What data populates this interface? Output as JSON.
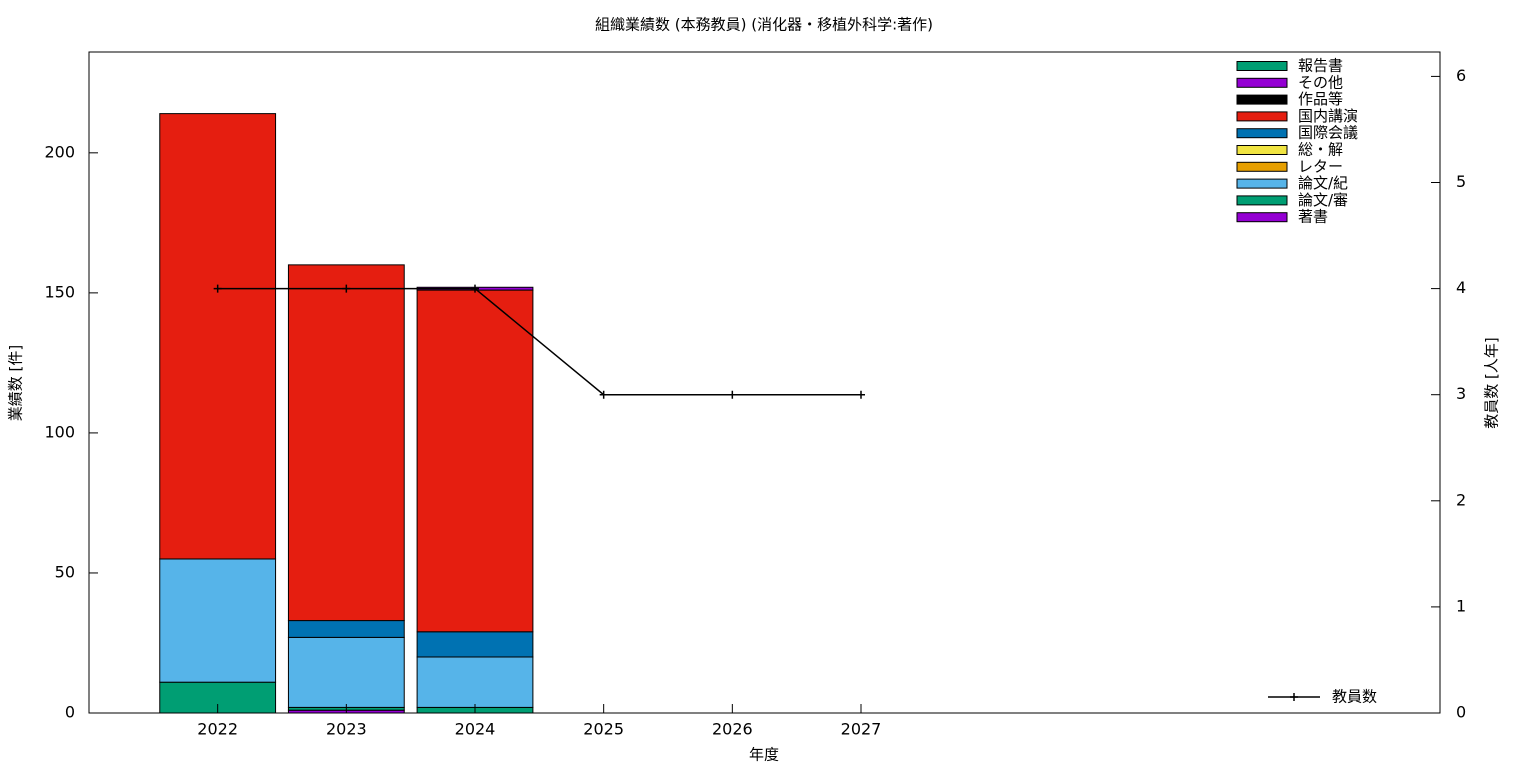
{
  "chart_data": {
    "type": "bar",
    "title": "組織業績数 (本務教員) (消化器・移植外科学:著作)",
    "xlabel": "年度",
    "ylabel": "業績数 [件]",
    "y2label": "教員数 [人年]",
    "x": [
      2022,
      2023,
      2024,
      2025,
      2026,
      2027
    ],
    "xlim": [
      2021,
      2031.5
    ],
    "xticks": [
      2022,
      2023,
      2024,
      2025,
      2026,
      2027
    ],
    "ylim": [
      0,
      236
    ],
    "yticks": [
      0,
      50,
      100,
      150,
      200
    ],
    "y2lim": [
      0,
      6.23
    ],
    "y2ticks": [
      0,
      1,
      2,
      3,
      4,
      5,
      6
    ],
    "bar_width": 0.9,
    "series": [
      {
        "name": "報告書",
        "color": "#009e73",
        "values": [
          0,
          0,
          0,
          null,
          null,
          null
        ]
      },
      {
        "name": "その他",
        "color": "#9400d3",
        "values": [
          0,
          0,
          1,
          null,
          null,
          null
        ]
      },
      {
        "name": "作品等",
        "color": "#000000",
        "values": [
          0,
          0,
          0,
          null,
          null,
          null
        ]
      },
      {
        "name": "国内講演",
        "color": "#e51e10",
        "values": [
          159,
          127,
          122,
          null,
          null,
          null
        ]
      },
      {
        "name": "国際会議",
        "color": "#0072b2",
        "values": [
          0,
          6,
          9,
          null,
          null,
          null
        ]
      },
      {
        "name": "総・解",
        "color": "#f0e442",
        "values": [
          0,
          0,
          0,
          null,
          null,
          null
        ]
      },
      {
        "name": "レター",
        "color": "#e69f00",
        "values": [
          0,
          0,
          0,
          null,
          null,
          null
        ]
      },
      {
        "name": "論文/紀",
        "color": "#56b4e9",
        "values": [
          44,
          25,
          18,
          null,
          null,
          null
        ]
      },
      {
        "name": "論文/審",
        "color": "#009e73",
        "values": [
          11,
          1,
          2,
          null,
          null,
          null
        ]
      },
      {
        "name": "著書",
        "color": "#9400d3",
        "values": [
          0,
          1,
          0,
          null,
          null,
          null
        ]
      },
      {
        "name": "教員数",
        "color": "#000000",
        "type": "line",
        "axis": "y2",
        "values": [
          4,
          4,
          4,
          3,
          3,
          3
        ]
      }
    ]
  }
}
